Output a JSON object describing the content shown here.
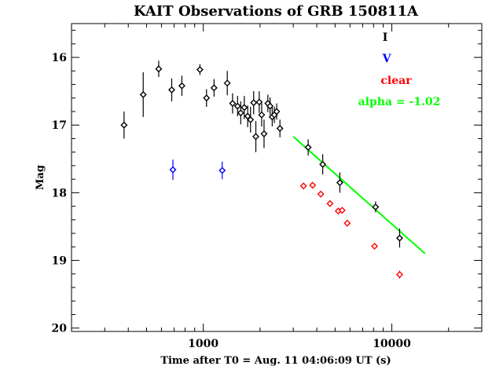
{
  "chart_data": {
    "type": "scatter",
    "title": "KAIT Observations of GRB 150811A",
    "xlabel": "Time after T0 = Aug. 11 04:06:09 UT (s)",
    "ylabel": "Mag",
    "x_scale": "log",
    "xlim": [
      200,
      30000
    ],
    "ylim": [
      20.05,
      15.5
    ],
    "y_inverted": true,
    "x_major_ticks": [
      1000,
      10000
    ],
    "x_tick_labels": [
      "1000",
      "10000"
    ],
    "y_major_ticks": [
      16,
      17,
      18,
      19,
      20
    ],
    "y_tick_labels": [
      "16",
      "17",
      "18",
      "19",
      "20"
    ],
    "legend": [
      {
        "label": "I",
        "color": "#000000"
      },
      {
        "label": "V",
        "color": "#0000ff"
      },
      {
        "label": "clear",
        "color": "#ff0000"
      },
      {
        "label": "alpha = -1.02",
        "color": "#00ff00"
      }
    ],
    "legend_position": "top-right",
    "series": [
      {
        "color": "#000000",
        "marker": "diamond",
        "points": [
          {
            "x": 380,
            "y": 17.0,
            "err": 0.2
          },
          {
            "x": 480,
            "y": 16.55,
            "err": 0.33
          },
          {
            "x": 580,
            "y": 16.17,
            "err": 0.12
          },
          {
            "x": 680,
            "y": 16.48,
            "err": 0.17
          },
          {
            "x": 770,
            "y": 16.42,
            "err": 0.15
          },
          {
            "x": 960,
            "y": 16.18,
            "err": 0.08
          },
          {
            "x": 1040,
            "y": 16.6,
            "err": 0.13
          },
          {
            "x": 1140,
            "y": 16.45,
            "err": 0.13
          },
          {
            "x": 1340,
            "y": 16.38,
            "err": 0.18
          },
          {
            "x": 1430,
            "y": 16.68,
            "err": 0.15
          },
          {
            "x": 1520,
            "y": 16.72,
            "err": 0.15
          },
          {
            "x": 1580,
            "y": 16.82,
            "err": 0.17
          },
          {
            "x": 1650,
            "y": 16.74,
            "err": 0.17
          },
          {
            "x": 1720,
            "y": 16.87,
            "err": 0.16
          },
          {
            "x": 1780,
            "y": 16.92,
            "err": 0.19
          },
          {
            "x": 1850,
            "y": 16.67,
            "err": 0.17
          },
          {
            "x": 1900,
            "y": 17.17,
            "err": 0.23
          },
          {
            "x": 1980,
            "y": 16.66,
            "err": 0.16
          },
          {
            "x": 2040,
            "y": 16.85,
            "err": 0.17
          },
          {
            "x": 2100,
            "y": 17.13,
            "err": 0.21
          },
          {
            "x": 2200,
            "y": 16.68,
            "err": 0.13
          },
          {
            "x": 2260,
            "y": 16.72,
            "err": 0.13
          },
          {
            "x": 2320,
            "y": 16.88,
            "err": 0.14
          },
          {
            "x": 2380,
            "y": 16.85,
            "err": 0.12
          },
          {
            "x": 2450,
            "y": 16.8,
            "err": 0.12
          },
          {
            "x": 2550,
            "y": 17.05,
            "err": 0.13
          },
          {
            "x": 3600,
            "y": 17.33,
            "err": 0.12
          },
          {
            "x": 4300,
            "y": 17.58,
            "err": 0.15
          },
          {
            "x": 5300,
            "y": 17.85,
            "err": 0.15
          },
          {
            "x": 8200,
            "y": 18.21,
            "err": 0.08
          },
          {
            "x": 11000,
            "y": 18.67,
            "err": 0.14
          }
        ]
      },
      {
        "color": "#0000ff",
        "marker": "diamond",
        "points": [
          {
            "x": 690,
            "y": 17.66,
            "err": 0.15
          },
          {
            "x": 1260,
            "y": 17.67,
            "err": 0.13
          }
        ]
      },
      {
        "color": "#ff0000",
        "marker": "diamond",
        "points": [
          {
            "x": 3400,
            "y": 17.9,
            "err": 0.04
          },
          {
            "x": 3800,
            "y": 17.89,
            "err": 0.04
          },
          {
            "x": 4200,
            "y": 18.02,
            "err": 0.04
          },
          {
            "x": 4700,
            "y": 18.16,
            "err": 0.04
          },
          {
            "x": 5200,
            "y": 18.27,
            "err": 0.04
          },
          {
            "x": 5450,
            "y": 18.26,
            "err": 0.04
          },
          {
            "x": 5800,
            "y": 18.45,
            "err": 0.04
          },
          {
            "x": 8100,
            "y": 18.79,
            "err": 0.04
          },
          {
            "x": 11000,
            "y": 19.21,
            "err": 0.06
          }
        ]
      }
    ],
    "fit_line": {
      "color": "#00ff00",
      "x": [
        3000,
        15000
      ],
      "y": [
        17.17,
        18.9
      ]
    }
  }
}
